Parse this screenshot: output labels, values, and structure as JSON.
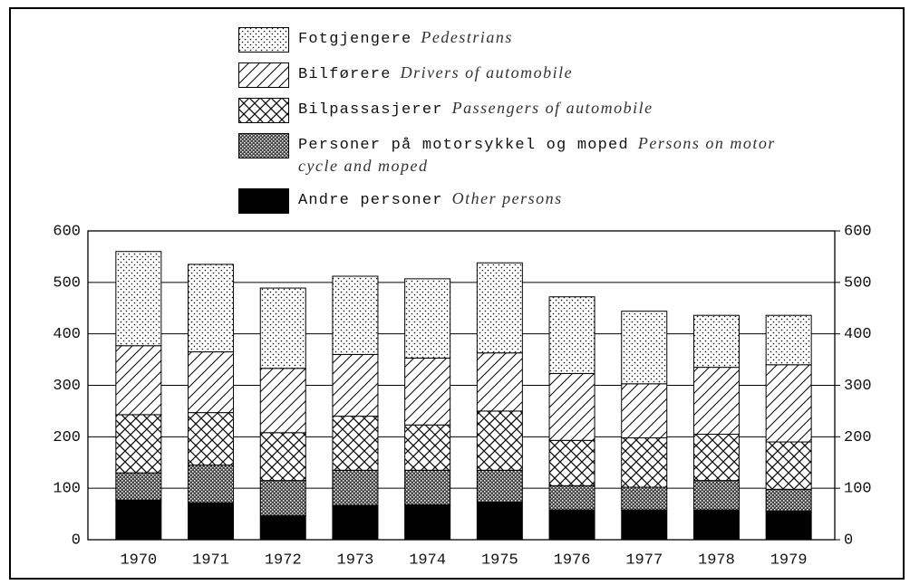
{
  "chart_data": {
    "type": "bar",
    "stacked": true,
    "categories": [
      "1970",
      "1971",
      "1972",
      "1973",
      "1974",
      "1975",
      "1976",
      "1977",
      "1978",
      "1979"
    ],
    "series": [
      {
        "name": "Andre personer",
        "name_en": "Other persons",
        "color": "#000000",
        "pattern": "solid",
        "values": [
          77,
          72,
          47,
          67,
          68,
          73,
          58,
          58,
          58,
          56
        ]
      },
      {
        "name": "Personer på motorsykkel og moped",
        "name_en": "Persons on motor cycle and moped",
        "color": "#000000",
        "pattern": "dense",
        "values": [
          53,
          73,
          68,
          68,
          67,
          62,
          47,
          44,
          57,
          42
        ]
      },
      {
        "name": "Bilpassasjerer",
        "name_en": "Passengers of automobile",
        "color": "#000000",
        "pattern": "crosshatch",
        "values": [
          113,
          102,
          93,
          105,
          88,
          115,
          88,
          96,
          90,
          92
        ]
      },
      {
        "name": "Bilførere",
        "name_en": "Drivers of automobile",
        "color": "#000000",
        "pattern": "diagonal",
        "values": [
          134,
          118,
          125,
          120,
          130,
          113,
          130,
          105,
          130,
          150
        ]
      },
      {
        "name": "Fotgjengere",
        "name_en": "Pedestrians",
        "color": "#000000",
        "pattern": "dots",
        "values": [
          183,
          170,
          156,
          152,
          154,
          175,
          149,
          141,
          101,
          96
        ]
      }
    ],
    "ylim": [
      0,
      600
    ],
    "yticks": [
      0,
      100,
      200,
      300,
      400,
      500,
      600
    ],
    "y2lim": [
      0,
      600
    ],
    "y2ticks": [
      0,
      100,
      200,
      300,
      400,
      500,
      600
    ],
    "grid": true
  }
}
